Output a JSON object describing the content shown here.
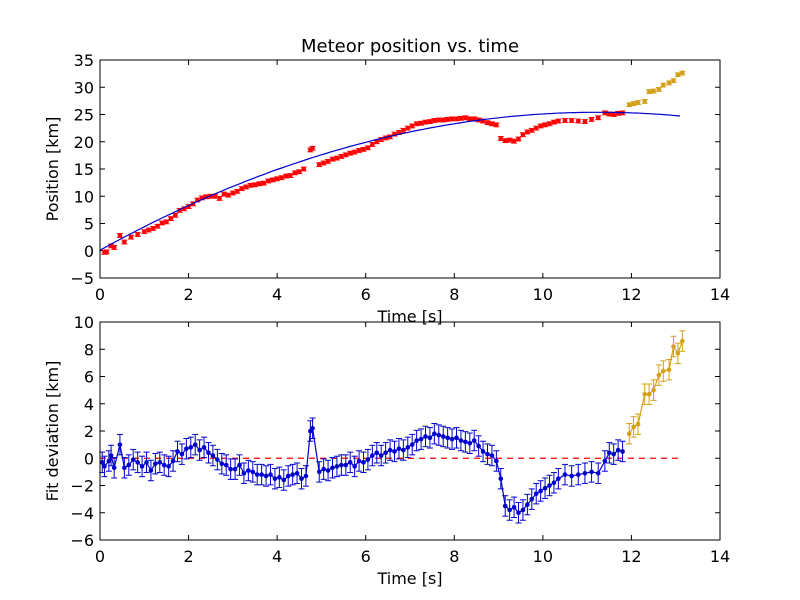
{
  "chart_data": [
    {
      "type": "scatter",
      "title": "Meteor position vs. time",
      "xlabel": "Time [s]",
      "ylabel": "Position [km]",
      "xlim": [
        0,
        14
      ],
      "ylim": [
        -5,
        35
      ],
      "xticks": [
        "0",
        "2",
        "4",
        "6",
        "8",
        "10",
        "12",
        "14"
      ],
      "yticks": [
        "−5",
        "0",
        "5",
        "10",
        "15",
        "20",
        "25",
        "30",
        "35"
      ],
      "colors": {
        "points": "#ff0000",
        "late_points": "#d4a017",
        "fit": "#0000cc"
      },
      "series": [
        {
          "kind": "points",
          "color_key": "points",
          "err": 0.35,
          "x": [
            0.1,
            0.15,
            0.25,
            0.32,
            0.45,
            0.55,
            0.7,
            0.85,
            1.0,
            1.1,
            1.2,
            1.3,
            1.4,
            1.5,
            1.6,
            1.7,
            1.8,
            1.9,
            2.0,
            2.1,
            2.2,
            2.3,
            2.4,
            2.5,
            2.6,
            2.7,
            2.8,
            2.9,
            3.0,
            3.1,
            3.2,
            3.3,
            3.4,
            3.5,
            3.6,
            3.7,
            3.8,
            3.9,
            4.0,
            4.1,
            4.2,
            4.3,
            4.4,
            4.5,
            4.6,
            4.75,
            4.8,
            4.95,
            5.05,
            5.15,
            5.25,
            5.35,
            5.45,
            5.55,
            5.65,
            5.75,
            5.85,
            5.95,
            6.05,
            6.15,
            6.25,
            6.35,
            6.45,
            6.55,
            6.65,
            6.75,
            6.85,
            6.95,
            7.05,
            7.15,
            7.25,
            7.35,
            7.45,
            7.55,
            7.65,
            7.75,
            7.85,
            7.95,
            8.05,
            8.15,
            8.25,
            8.35,
            8.45,
            8.55,
            8.65,
            8.75,
            8.85,
            8.95,
            9.05,
            9.15,
            9.25,
            9.35,
            9.45,
            9.55,
            9.65,
            9.75,
            9.85,
            9.95,
            10.05,
            10.15,
            10.25,
            10.35,
            10.5,
            10.65,
            10.8,
            10.95,
            11.1,
            11.25,
            11.4,
            11.5,
            11.6,
            11.7,
            11.8
          ],
          "y": [
            -0.3,
            -0.2,
            0.9,
            0.6,
            2.8,
            1.6,
            2.5,
            3.0,
            3.5,
            3.8,
            4.1,
            4.5,
            5.1,
            5.3,
            5.9,
            6.5,
            7.4,
            7.7,
            8.1,
            8.6,
            9.3,
            9.7,
            9.9,
            10.0,
            10.0,
            9.6,
            10.4,
            10.2,
            10.6,
            10.9,
            11.4,
            11.7,
            12.0,
            12.1,
            12.3,
            12.4,
            12.8,
            13.0,
            13.2,
            13.4,
            13.7,
            13.8,
            14.3,
            14.5,
            15.0,
            18.5,
            18.8,
            15.8,
            16.1,
            16.4,
            16.8,
            17.0,
            17.3,
            17.6,
            17.9,
            18.1,
            18.4,
            18.6,
            18.9,
            19.5,
            20.0,
            20.4,
            20.7,
            20.9,
            21.4,
            21.7,
            22.1,
            22.5,
            22.9,
            23.3,
            23.4,
            23.6,
            23.7,
            23.9,
            24.0,
            24.0,
            24.1,
            24.2,
            24.2,
            24.3,
            24.4,
            24.2,
            24.2,
            24.0,
            23.8,
            23.5,
            23.3,
            23.1,
            20.6,
            20.2,
            20.3,
            20.1,
            20.5,
            21.3,
            21.8,
            22.1,
            22.5,
            22.9,
            23.1,
            23.3,
            23.6,
            23.8,
            23.9,
            23.9,
            23.8,
            23.7,
            24.1,
            24.4,
            25.3,
            25.1,
            25.0,
            25.2,
            25.3
          ]
        },
        {
          "kind": "points",
          "color_key": "late_points",
          "err": 0.35,
          "x": [
            11.95,
            12.05,
            12.15,
            12.3,
            12.4,
            12.5,
            12.62,
            12.72,
            12.85,
            12.95,
            13.05,
            13.15
          ],
          "y": [
            26.8,
            27.0,
            27.2,
            27.4,
            29.2,
            29.3,
            29.6,
            30.4,
            30.8,
            31.2,
            32.3,
            32.6
          ]
        },
        {
          "kind": "line",
          "color_key": "fit",
          "poly": [
            0.1,
            4.5,
            -0.2
          ]
        }
      ]
    },
    {
      "type": "line",
      "title": "",
      "xlabel": "Time [s]",
      "ylabel": "Fit deviation [km]",
      "xlim": [
        0,
        14
      ],
      "ylim": [
        -6,
        10
      ],
      "xticks": [
        "0",
        "2",
        "4",
        "6",
        "8",
        "10",
        "12",
        "14"
      ],
      "yticks": [
        "−6",
        "−4",
        "−2",
        "0",
        "2",
        "4",
        "6",
        "8",
        "10"
      ],
      "colors": {
        "line": "#0000cc",
        "late_points": "#d4a017",
        "zero": "#ff0000"
      },
      "zero_line": {
        "x0": 0,
        "x1": 13.1
      },
      "series": [
        {
          "kind": "errline",
          "color_key": "line",
          "err": 0.75,
          "x": [
            0.05,
            0.1,
            0.2,
            0.25,
            0.32,
            0.45,
            0.55,
            0.65,
            0.75,
            0.85,
            0.95,
            1.05,
            1.15,
            1.25,
            1.35,
            1.45,
            1.55,
            1.65,
            1.75,
            1.85,
            1.95,
            2.05,
            2.15,
            2.25,
            2.35,
            2.45,
            2.55,
            2.65,
            2.75,
            2.85,
            2.95,
            3.05,
            3.15,
            3.25,
            3.35,
            3.45,
            3.55,
            3.65,
            3.75,
            3.85,
            3.95,
            4.05,
            4.15,
            4.25,
            4.35,
            4.45,
            4.55,
            4.65,
            4.75,
            4.8,
            4.95,
            5.05,
            5.15,
            5.25,
            5.35,
            5.45,
            5.55,
            5.65,
            5.75,
            5.85,
            5.95,
            6.05,
            6.15,
            6.25,
            6.35,
            6.45,
            6.55,
            6.65,
            6.75,
            6.85,
            6.95,
            7.05,
            7.15,
            7.25,
            7.35,
            7.45,
            7.55,
            7.65,
            7.75,
            7.85,
            7.95,
            8.05,
            8.15,
            8.25,
            8.35,
            8.45,
            8.55,
            8.65,
            8.75,
            8.85,
            8.95,
            9.05,
            9.15,
            9.25,
            9.35,
            9.45,
            9.55,
            9.65,
            9.75,
            9.85,
            9.95,
            10.05,
            10.15,
            10.25,
            10.35,
            10.5,
            10.65,
            10.8,
            10.95,
            11.1,
            11.25,
            11.4,
            11.5,
            11.6,
            11.7,
            11.8
          ],
          "y": [
            -0.3,
            -0.6,
            -0.2,
            0.2,
            -0.7,
            1.0,
            -0.7,
            -0.5,
            -0.1,
            -0.3,
            -0.6,
            -0.3,
            -0.9,
            -0.4,
            -0.3,
            -0.5,
            -0.6,
            -0.2,
            0.5,
            0.3,
            0.7,
            0.8,
            1.0,
            0.6,
            0.8,
            0.4,
            0.2,
            -0.1,
            -0.4,
            -0.5,
            -0.8,
            -0.8,
            -0.5,
            -1.1,
            -0.9,
            -1.0,
            -1.2,
            -1.2,
            -1.3,
            -1.2,
            -1.5,
            -1.4,
            -1.6,
            -1.3,
            -1.2,
            -1.1,
            -1.5,
            -1.3,
            2.0,
            2.2,
            -1.0,
            -0.8,
            -0.9,
            -0.7,
            -0.6,
            -0.5,
            -0.5,
            -0.3,
            -0.6,
            -0.2,
            -0.3,
            -0.1,
            0.2,
            0.4,
            0.2,
            0.4,
            0.6,
            0.5,
            0.7,
            0.6,
            0.8,
            1.0,
            1.3,
            1.4,
            1.6,
            1.5,
            1.8,
            1.7,
            1.6,
            1.5,
            1.4,
            1.5,
            1.3,
            1.2,
            1.1,
            1.3,
            0.9,
            0.5,
            0.3,
            0.2,
            -0.2,
            -1.5,
            -3.5,
            -3.8,
            -3.6,
            -4.0,
            -3.8,
            -3.4,
            -3.0,
            -2.6,
            -2.4,
            -2.2,
            -2.0,
            -1.8,
            -1.5,
            -1.2,
            -1.3,
            -1.2,
            -1.1,
            -1.0,
            -1.1,
            -0.2,
            0.4,
            0.3,
            0.6,
            0.5
          ]
        },
        {
          "kind": "errline",
          "color_key": "late_points",
          "err": 0.75,
          "x": [
            11.95,
            12.05,
            12.15,
            12.3,
            12.4,
            12.5,
            12.62,
            12.72,
            12.85,
            12.95,
            13.05,
            13.15
          ],
          "y": [
            1.8,
            2.3,
            2.5,
            4.7,
            4.7,
            5.0,
            6.1,
            6.4,
            6.5,
            8.2,
            7.7,
            8.6
          ]
        }
      ]
    }
  ]
}
